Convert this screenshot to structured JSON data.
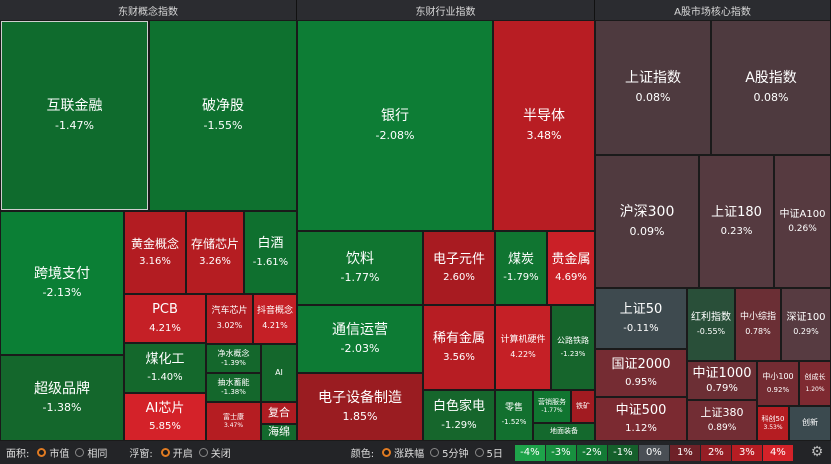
{
  "panels": [
    {
      "title": "东财概念指数"
    },
    {
      "title": "东财行业指数"
    },
    {
      "title": "A股市场核心指数"
    }
  ],
  "tiles": [
    {
      "key": "hlwjr",
      "name": "互联金融",
      "value": "-1.47%",
      "color": "#0f6b2d"
    },
    {
      "key": "pjg",
      "name": "破净股",
      "value": "-1.55%",
      "color": "#0e712f"
    },
    {
      "key": "kjzf",
      "name": "跨境支付",
      "value": "-2.13%",
      "color": "#0b7f35"
    },
    {
      "key": "hjgn",
      "name": "黄金概念",
      "value": "3.16%",
      "color": "#b31c22"
    },
    {
      "key": "ccxp",
      "name": "存储芯片",
      "value": "3.26%",
      "color": "#b51d22"
    },
    {
      "key": "bj",
      "name": "白酒",
      "value": "-1.61%",
      "color": "#0f702f"
    },
    {
      "key": "pcb",
      "name": "PCB",
      "value": "4.21%",
      "color": "#c52026"
    },
    {
      "key": "qcxp",
      "name": "汽车芯片",
      "value": "3.02%",
      "color": "#b21c22"
    },
    {
      "key": "dygn",
      "name": "抖音概念",
      "value": "4.21%",
      "color": "#c52026"
    },
    {
      "key": "mhg",
      "name": "煤化工",
      "value": "-1.40%",
      "color": "#14682c"
    },
    {
      "key": "cjpp",
      "name": "超级品牌",
      "value": "-1.38%",
      "color": "#14672c"
    },
    {
      "key": "jsgn",
      "name": "净水概念",
      "value": "-1.39%",
      "color": "#14672c"
    },
    {
      "key": "cscn",
      "name": "抽水蓄能",
      "value": "-1.38%",
      "color": "#14672c"
    },
    {
      "key": "ai_s",
      "name": "AI",
      "value": "",
      "color": "#14672c"
    },
    {
      "key": "aixp",
      "name": "AI芯片",
      "value": "5.85%",
      "color": "#d42229"
    },
    {
      "key": "fsk",
      "name": "富士康",
      "value": "3.47%",
      "color": "#b51d22"
    },
    {
      "key": "fh",
      "name": "复合",
      "value": "",
      "color": "#ae1c22"
    },
    {
      "key": "hm",
      "name": "海绵",
      "value": "",
      "color": "#136a2d"
    },
    {
      "key": "yh",
      "name": "银行",
      "value": "-2.08%",
      "color": "#0d7d35"
    },
    {
      "key": "bdt",
      "name": "半导体",
      "value": "3.48%",
      "color": "#b81d23"
    },
    {
      "key": "yl",
      "name": "饮料",
      "value": "-1.77%",
      "color": "#107530"
    },
    {
      "key": "dzyj",
      "name": "电子元件",
      "value": "2.60%",
      "color": "#a81b21"
    },
    {
      "key": "mt",
      "name": "煤炭",
      "value": "-1.79%",
      "color": "#107531"
    },
    {
      "key": "gjs",
      "name": "贵金属",
      "value": "4.69%",
      "color": "#ca2027"
    },
    {
      "key": "txyy",
      "name": "通信运营",
      "value": "-2.03%",
      "color": "#0d7b34"
    },
    {
      "key": "xyjs",
      "name": "稀有金属",
      "value": "3.56%",
      "color": "#b71d23"
    },
    {
      "key": "jsjyj",
      "name": "计算机硬件",
      "value": "4.22%",
      "color": "#c52026"
    },
    {
      "key": "gltl",
      "name": "公路铁路",
      "value": "-1.23%",
      "color": "#16652c"
    },
    {
      "key": "dzsbzz",
      "name": "电子设备制造",
      "value": "1.85%",
      "color": "#9a1c21"
    },
    {
      "key": "bsjd",
      "name": "白色家电",
      "value": "-1.29%",
      "color": "#16662c"
    },
    {
      "key": "ls",
      "name": "零售",
      "value": "-1.52%",
      "color": "#12702f"
    },
    {
      "key": "yxfw",
      "name": "营销服务",
      "value": "-1.77%",
      "color": "#107530"
    },
    {
      "key": "tk",
      "name": "铁矿",
      "value": "",
      "color": "#a21b21"
    },
    {
      "key": "dmzb",
      "name": "地面装备",
      "value": "",
      "color": "#14692d"
    },
    {
      "key": "szzs",
      "name": "上证指数",
      "value": "0.08%",
      "color": "#4e3a3f"
    },
    {
      "key": "agzs",
      "name": "A股指数",
      "value": "0.08%",
      "color": "#4e3a3f"
    },
    {
      "key": "hs300",
      "name": "沪深300",
      "value": "0.09%",
      "color": "#503a3f"
    },
    {
      "key": "sz180",
      "name": "上证180",
      "value": "0.23%",
      "color": "#553a40"
    },
    {
      "key": "zza100",
      "name": "中证A100",
      "value": "0.26%",
      "color": "#563a40"
    },
    {
      "key": "sz50",
      "name": "上证50",
      "value": "-0.11%",
      "color": "#3e4a4f"
    },
    {
      "key": "hlzs",
      "name": "红利指数",
      "value": "-0.55%",
      "color": "#294f39"
    },
    {
      "key": "zxzz",
      "name": "中小综指",
      "value": "0.78%",
      "color": "#6b2f35"
    },
    {
      "key": "sz100",
      "name": "深证100",
      "value": "0.29%",
      "color": "#573b41"
    },
    {
      "key": "gz2000",
      "name": "国证2000",
      "value": "0.95%",
      "color": "#752c33"
    },
    {
      "key": "zz1000",
      "name": "中证1000",
      "value": "0.79%",
      "color": "#6c2f35"
    },
    {
      "key": "zx100",
      "name": "中小100",
      "value": "0.92%",
      "color": "#742c33"
    },
    {
      "key": "cyb",
      "name": "创成长",
      "value": "1.20%",
      "color": "#7e2a31"
    },
    {
      "key": "zz500",
      "name": "中证500",
      "value": "1.12%",
      "color": "#7b2a31"
    },
    {
      "key": "sz380",
      "name": "上证380",
      "value": "0.89%",
      "color": "#722d34"
    },
    {
      "key": "kc50",
      "name": "科创50",
      "value": "3.53%",
      "color": "#b51d22"
    },
    {
      "key": "cxzs",
      "name": "创新",
      "value": "",
      "color": "#3b4a4f"
    }
  ],
  "controls": {
    "area_label": "面积:",
    "area_options": [
      "市值",
      "相同"
    ],
    "float_label": "浮窗:",
    "float_options": [
      "开启",
      "关闭"
    ],
    "color_label": "颜色:",
    "color_options": [
      "涨跌幅",
      "5分钟",
      "5日"
    ]
  },
  "legend": [
    {
      "label": "-4%",
      "color": "#1ea34a"
    },
    {
      "label": "-3%",
      "color": "#18903f"
    },
    {
      "label": "-2%",
      "color": "#137a35"
    },
    {
      "label": "-1%",
      "color": "#15602b"
    },
    {
      "label": "0%",
      "color": "#4a4f55"
    },
    {
      "label": "1%",
      "color": "#6e2128"
    },
    {
      "label": "2%",
      "color": "#951e25"
    },
    {
      "label": "3%",
      "color": "#b71d23"
    },
    {
      "label": "4%",
      "color": "#d42229"
    }
  ]
}
